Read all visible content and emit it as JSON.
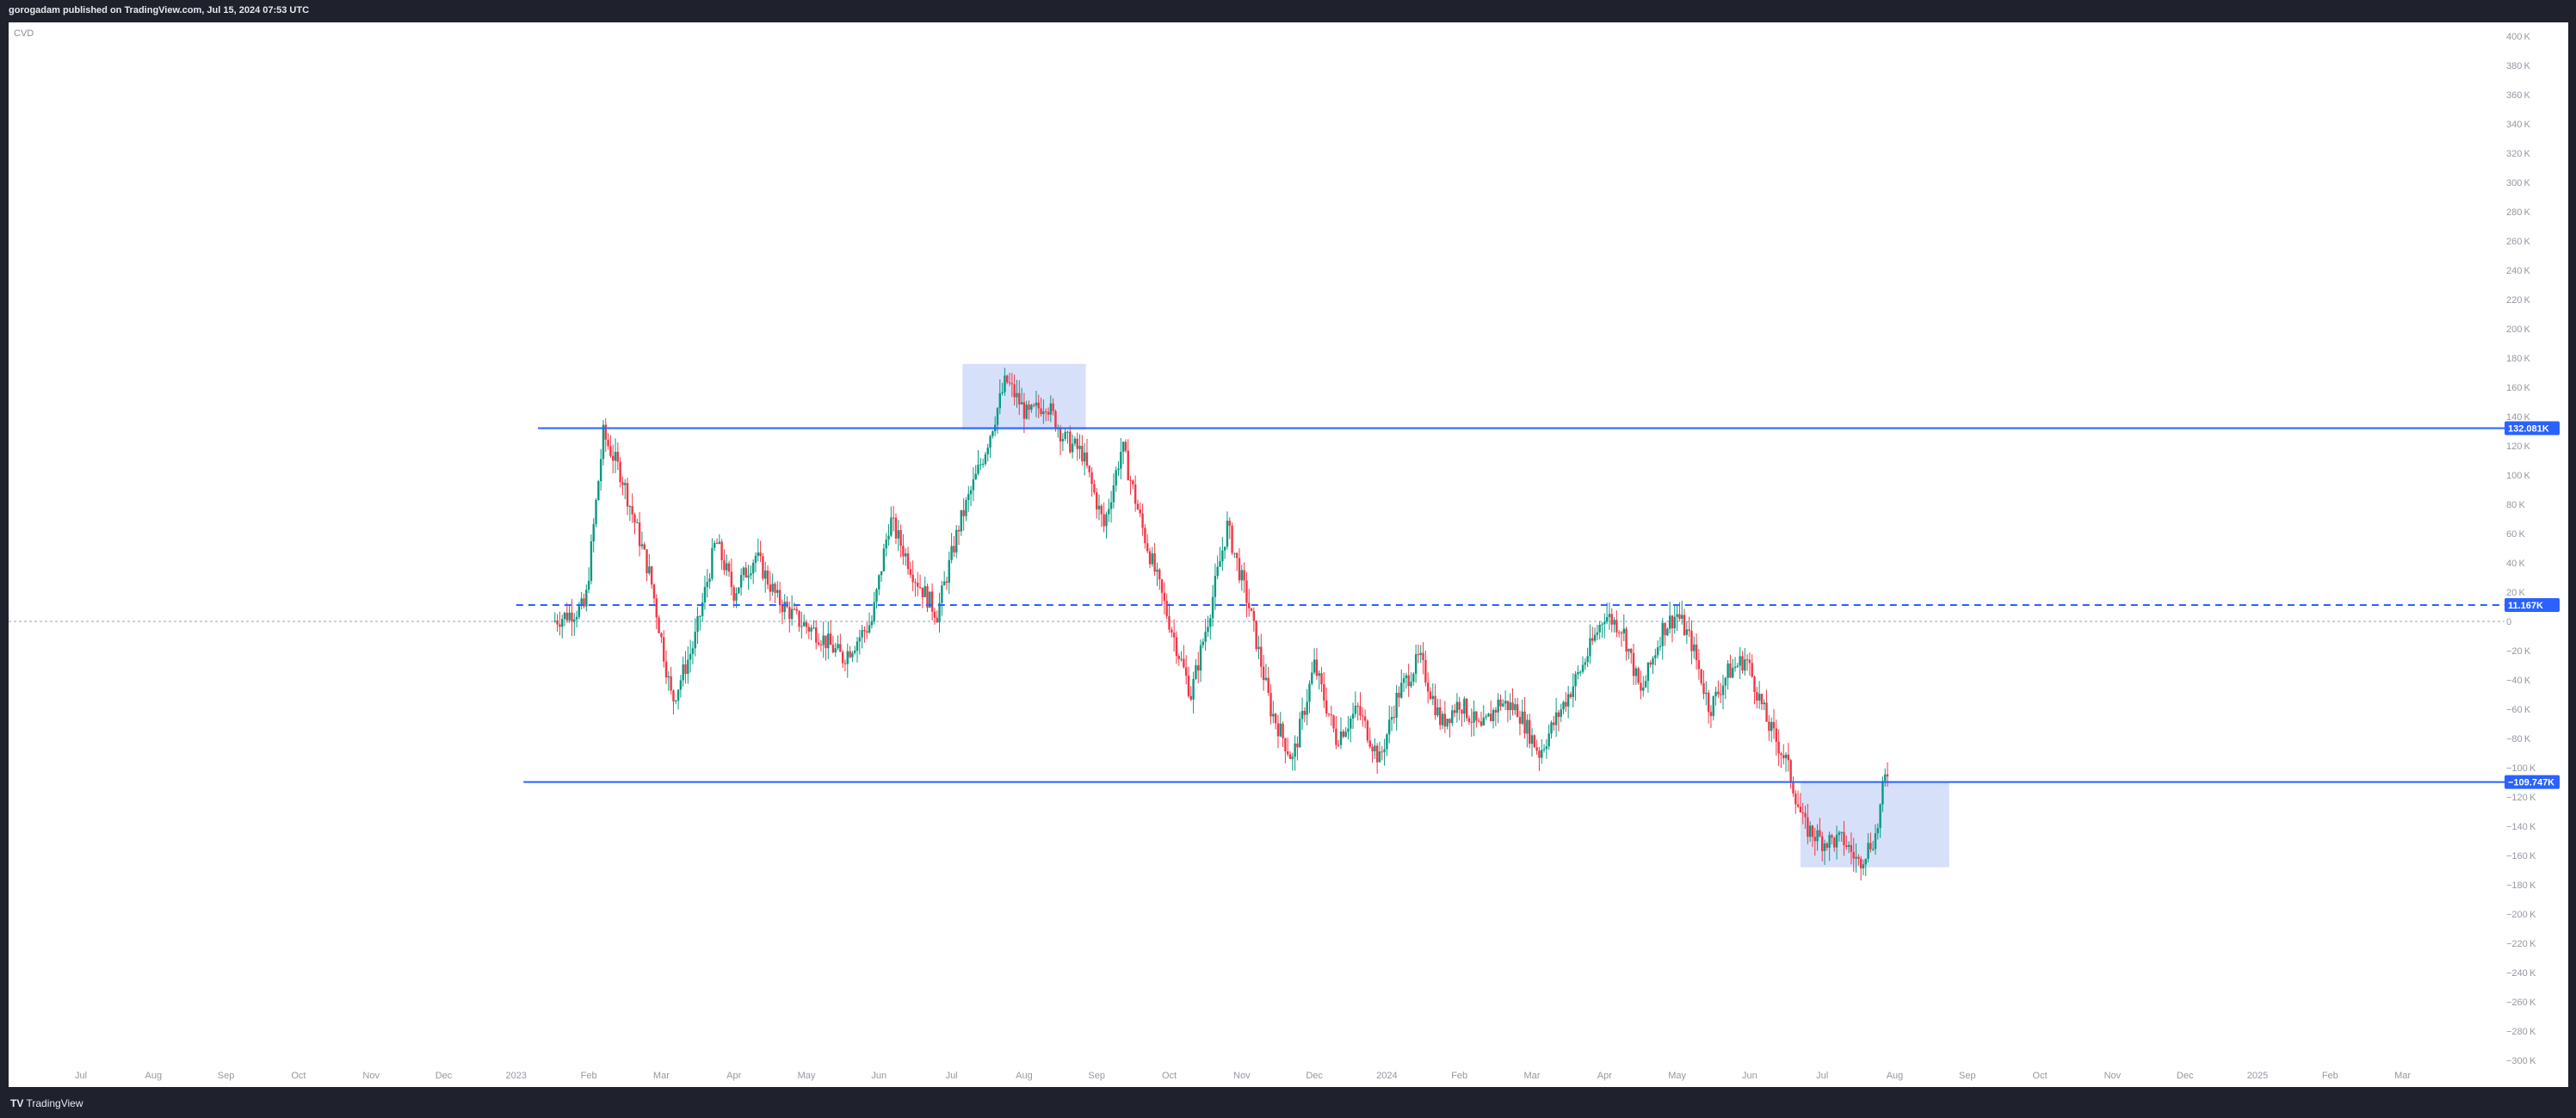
{
  "header": {
    "publish_info": "gorogadam published on TradingView.com, Jul 15, 2024 07:53 UTC"
  },
  "footer": {
    "brand": "TradingView"
  },
  "chart_data": {
    "type": "candlestick",
    "indicator": "CVD",
    "y_unit": "K",
    "ylim": [
      -300,
      400
    ],
    "y_ticks": [
      400,
      380,
      360,
      340,
      320,
      300,
      280,
      260,
      240,
      220,
      200,
      180,
      160,
      140,
      120,
      100,
      80,
      60,
      40,
      20,
      0,
      -20,
      -40,
      -60,
      -80,
      -100,
      -120,
      -140,
      -160,
      -180,
      -200,
      -220,
      -240,
      -260,
      -280,
      -300
    ],
    "x_labels": [
      "Jul",
      "Aug",
      "Sep",
      "Oct",
      "Nov",
      "Dec",
      "2023",
      "Feb",
      "Mar",
      "Apr",
      "May",
      "Jun",
      "Jul",
      "Aug",
      "Sep",
      "Oct",
      "Nov",
      "Dec",
      "2024",
      "Feb",
      "Mar",
      "Apr",
      "May",
      "Jun",
      "Jul",
      "Aug",
      "Sep",
      "Oct",
      "Nov",
      "Dec",
      "2025",
      "Feb",
      "Mar"
    ],
    "up_color": "#089981",
    "down_color": "#f23645",
    "line_color": "#2962ff",
    "highlight_color": "#d6e0f9",
    "series_path": [
      [
        6.5,
        0
      ],
      [
        6.95,
        10
      ],
      [
        7.2,
        128
      ],
      [
        7.45,
        100
      ],
      [
        7.85,
        30
      ],
      [
        8.15,
        -55
      ],
      [
        8.45,
        -15
      ],
      [
        8.75,
        55
      ],
      [
        9.0,
        20
      ],
      [
        9.3,
        45
      ],
      [
        9.6,
        15
      ],
      [
        9.9,
        0
      ],
      [
        10.15,
        -8
      ],
      [
        10.5,
        -25
      ],
      [
        10.9,
        0
      ],
      [
        11.15,
        70
      ],
      [
        11.5,
        30
      ],
      [
        11.8,
        5
      ],
      [
        12.1,
        65
      ],
      [
        12.45,
        115
      ],
      [
        12.75,
        165
      ],
      [
        13.05,
        140
      ],
      [
        13.3,
        150
      ],
      [
        13.55,
        125
      ],
      [
        13.8,
        115
      ],
      [
        14.1,
        65
      ],
      [
        14.35,
        120
      ],
      [
        14.65,
        60
      ],
      [
        15.0,
        0
      ],
      [
        15.3,
        -50
      ],
      [
        15.55,
        5
      ],
      [
        15.8,
        65
      ],
      [
        16.1,
        10
      ],
      [
        16.4,
        -60
      ],
      [
        16.7,
        -95
      ],
      [
        17.0,
        -30
      ],
      [
        17.3,
        -80
      ],
      [
        17.6,
        -60
      ],
      [
        17.9,
        -95
      ],
      [
        18.15,
        -50
      ],
      [
        18.45,
        -25
      ],
      [
        18.75,
        -70
      ],
      [
        19.0,
        -55
      ],
      [
        19.3,
        -75
      ],
      [
        19.55,
        -55
      ],
      [
        19.8,
        -60
      ],
      [
        20.1,
        -90
      ],
      [
        20.4,
        -60
      ],
      [
        20.7,
        -30
      ],
      [
        21.0,
        5
      ],
      [
        21.25,
        -5
      ],
      [
        21.5,
        -50
      ],
      [
        21.8,
        -5
      ],
      [
        22.0,
        5
      ],
      [
        22.2,
        -15
      ],
      [
        22.45,
        -60
      ],
      [
        22.7,
        -35
      ],
      [
        22.95,
        -25
      ],
      [
        23.25,
        -70
      ],
      [
        23.5,
        -95
      ],
      [
        23.75,
        -140
      ],
      [
        24.0,
        -150
      ],
      [
        24.3,
        -150
      ],
      [
        24.5,
        -165
      ],
      [
        24.75,
        -145
      ],
      [
        24.85,
        -110
      ],
      [
        24.9,
        -103
      ]
    ],
    "horizontal_levels": [
      {
        "value": 132.081,
        "label": "132.081K",
        "style": "solid",
        "from": 6.3
      },
      {
        "value": 11.167,
        "label": "11.167K",
        "style": "dashed",
        "from": 6.0
      },
      {
        "value": -109.747,
        "label": "−109.747K",
        "style": "solid",
        "from": 6.1
      }
    ],
    "zero_line": {
      "value": 0,
      "style": "dotted"
    },
    "highlight_boxes": [
      {
        "x_from": 12.15,
        "x_to": 13.85,
        "y_from": 131,
        "y_to": 176
      },
      {
        "x_from": 23.7,
        "x_to": 25.75,
        "y_from": -168,
        "y_to": -110
      }
    ]
  }
}
